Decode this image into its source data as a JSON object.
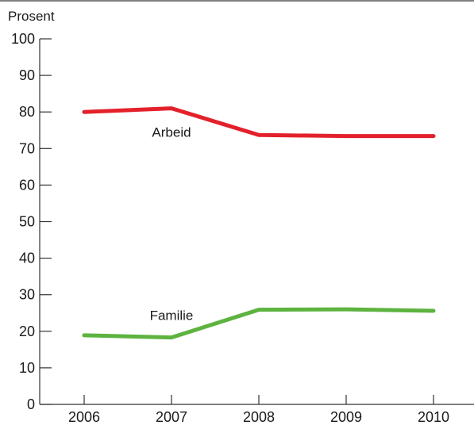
{
  "chart_data": {
    "type": "line",
    "ylabel": "Prosent",
    "x": [
      "2006",
      "2007",
      "2008",
      "2009",
      "2010"
    ],
    "yticks": [
      0,
      10,
      20,
      30,
      40,
      50,
      60,
      70,
      80,
      90,
      100
    ],
    "ylim": [
      0,
      100
    ],
    "grid": false,
    "legend": "inline-labels",
    "series": [
      {
        "name": "Arbeid",
        "color": "#e3212b",
        "values": [
          80,
          81,
          73.7,
          73.4,
          73.4
        ]
      },
      {
        "name": "Familie",
        "color": "#5db33f",
        "values": [
          18.9,
          18.3,
          25.9,
          26,
          25.6
        ]
      }
    ]
  }
}
